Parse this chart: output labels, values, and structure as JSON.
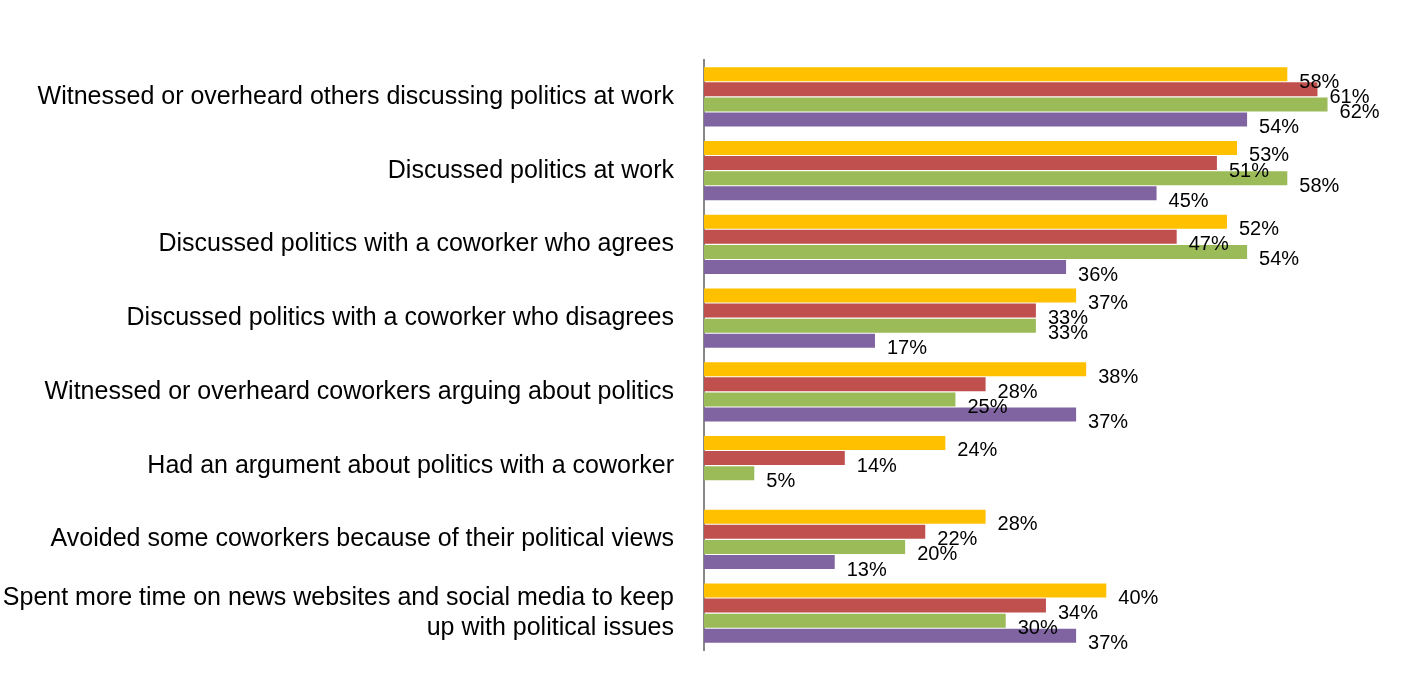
{
  "chart_data": {
    "type": "bar",
    "orientation": "horizontal",
    "legend": false,
    "tick_labels": "y",
    "categories": [
      "Witnessed or overheard others discussing politics at work",
      "Discussed politics at work",
      "Discussed politics with a coworker who agrees",
      "Discussed politics with a coworker who disagrees",
      "Witnessed or overheard coworkers arguing about politics",
      "Had an argument about politics with a coworker",
      "Avoided some coworkers because of their political views",
      "Spent more time on news websites and social media to keep up with political issues"
    ],
    "series": [
      {
        "color": "#ffc000",
        "values": [
          58,
          53,
          52,
          37,
          38,
          24,
          28,
          40
        ],
        "value_labels": [
          "58%",
          "53%",
          "52%",
          "37%",
          "38%",
          "24%",
          "28%",
          "40%"
        ]
      },
      {
        "color": "#c0504d",
        "values": [
          61,
          51,
          47,
          33,
          28,
          14,
          22,
          34
        ],
        "value_labels": [
          "61%",
          "51%",
          "47%",
          "33%",
          "28%",
          "14%",
          "22%",
          "34%"
        ]
      },
      {
        "color": "#9bbb59",
        "values": [
          62,
          58,
          54,
          33,
          25,
          5,
          20,
          30
        ],
        "value_labels": [
          "62%",
          "58%",
          "54%",
          "33%",
          "25%",
          "5%",
          "20%",
          "30%"
        ]
      },
      {
        "color": "#8064a2",
        "values": [
          54,
          45,
          36,
          17,
          37,
          null,
          13,
          37
        ],
        "value_labels": [
          "54%",
          "45%",
          "36%",
          "17%",
          "37%",
          null,
          "13%",
          "37%"
        ]
      }
    ]
  }
}
